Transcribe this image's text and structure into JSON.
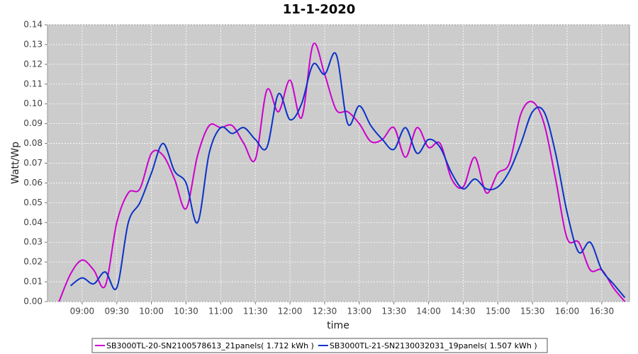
{
  "chart_data": {
    "type": "line",
    "title": "11-1-2020",
    "x_label": "time",
    "y_label": "Watt/Wp",
    "x": [
      520,
      530,
      540,
      550,
      560,
      570,
      580,
      590,
      600,
      610,
      620,
      630,
      640,
      650,
      660,
      670,
      680,
      690,
      700,
      710,
      720,
      730,
      740,
      750,
      760,
      770,
      780,
      790,
      800,
      810,
      820,
      830,
      840,
      850,
      860,
      870,
      880,
      890,
      900,
      910,
      920,
      930,
      940,
      950,
      960,
      970,
      980,
      990,
      1000,
      1010
    ],
    "series": [
      {
        "name": "SB3000TL-20-SN2100578613_21panels( 1.712 kWh )",
        "color": "#cc00cc",
        "values": [
          0.0,
          0.014,
          0.021,
          0.016,
          0.008,
          0.04,
          0.055,
          0.057,
          0.075,
          0.074,
          0.062,
          0.047,
          0.074,
          0.089,
          0.088,
          0.089,
          0.08,
          0.072,
          0.107,
          0.096,
          0.112,
          0.093,
          0.13,
          0.115,
          0.097,
          0.096,
          0.09,
          0.081,
          0.082,
          0.088,
          0.073,
          0.088,
          0.078,
          0.08,
          0.062,
          0.058,
          0.073,
          0.055,
          0.065,
          0.07,
          0.095,
          0.101,
          0.09,
          0.062,
          0.032,
          0.03,
          0.016,
          0.016,
          0.007,
          0.0
        ]
      },
      {
        "name": "SB3000TL-21-SN2130032031_19panels( 1.507 kWh )",
        "color": "#0a32c8",
        "values": [
          null,
          0.008,
          0.012,
          0.009,
          0.015,
          0.007,
          0.04,
          0.05,
          0.065,
          0.08,
          0.066,
          0.06,
          0.04,
          0.075,
          0.088,
          0.085,
          0.088,
          0.082,
          0.078,
          0.105,
          0.092,
          0.1,
          0.12,
          0.115,
          0.125,
          0.09,
          0.099,
          0.089,
          0.082,
          0.077,
          0.088,
          0.075,
          0.082,
          0.078,
          0.065,
          0.057,
          0.062,
          0.057,
          0.058,
          0.066,
          0.08,
          0.096,
          0.096,
          0.075,
          0.045,
          0.025,
          0.03,
          0.016,
          0.009,
          0.002
        ]
      }
    ],
    "xlim": [
      510,
      1014
    ],
    "xticks": [
      {
        "value": 540,
        "label": "09:00"
      },
      {
        "value": 570,
        "label": "09:30"
      },
      {
        "value": 600,
        "label": "10:00"
      },
      {
        "value": 630,
        "label": "10:30"
      },
      {
        "value": 660,
        "label": "11:00"
      },
      {
        "value": 690,
        "label": "11:30"
      },
      {
        "value": 720,
        "label": "12:00"
      },
      {
        "value": 750,
        "label": "12:30"
      },
      {
        "value": 780,
        "label": "13:00"
      },
      {
        "value": 810,
        "label": "13:30"
      },
      {
        "value": 840,
        "label": "14:00"
      },
      {
        "value": 870,
        "label": "14:30"
      },
      {
        "value": 900,
        "label": "15:00"
      },
      {
        "value": 930,
        "label": "15:30"
      },
      {
        "value": 960,
        "label": "16:00"
      },
      {
        "value": 990,
        "label": "16:30"
      }
    ],
    "ylim": [
      0,
      0.14
    ],
    "yticks": [
      {
        "value": 0,
        "label": "0.00"
      },
      {
        "value": 0.01,
        "label": "0.01"
      },
      {
        "value": 0.02,
        "label": "0.02"
      },
      {
        "value": 0.03,
        "label": "0.03"
      },
      {
        "value": 0.04,
        "label": "0.04"
      },
      {
        "value": 0.05,
        "label": "0.05"
      },
      {
        "value": 0.06,
        "label": "0.06"
      },
      {
        "value": 0.07,
        "label": "0.07"
      },
      {
        "value": 0.08,
        "label": "0.08"
      },
      {
        "value": 0.09,
        "label": "0.09"
      },
      {
        "value": 0.1,
        "label": "0.10"
      },
      {
        "value": 0.11,
        "label": "0.11"
      },
      {
        "value": 0.12,
        "label": "0.12"
      },
      {
        "value": 0.13,
        "label": "0.13"
      },
      {
        "value": 0.14,
        "label": "0.14"
      }
    ],
    "grid": true
  }
}
